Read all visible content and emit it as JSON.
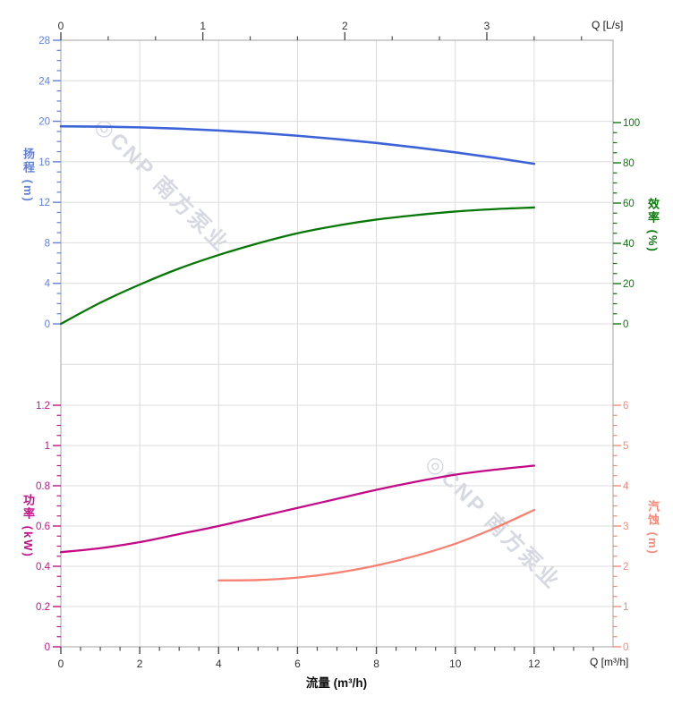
{
  "colors": {
    "head": "#3c63d8",
    "head_label": "#627fdd",
    "efficiency": "#077807",
    "efficiency_label": "#0a7a0a",
    "power": "#c40a86",
    "power_label": "#c3118c",
    "npsh": "#f98070",
    "npsh_label": "#f98878",
    "grid": "#dcdcdc",
    "frame": "#b0b0b0",
    "x_tick": "#4d4d4d",
    "x_tick_label": "#333333",
    "watermark": "#c9cdd8"
  },
  "watermarks": [
    {
      "text": "◎CNP 南方泵业"
    },
    {
      "text": "◎CNP 南方泵业"
    }
  ],
  "labels": {
    "q_top_unit": "Q [L/s]",
    "q_bottom_unit": "Q [m³/h]",
    "xlabel": "流量 (m³/h)",
    "head_title": "扬程 (m)",
    "efficiency_title": "效率 (%)",
    "power_title": "功率 (kW)",
    "npsh_title": "汽蚀 (m)"
  },
  "chart_data": [
    {
      "type": "line",
      "title": "",
      "xlabel": "流量 (m³/h)",
      "x_axis_bottom": {
        "unit": "Q [m³/h]",
        "range": [
          0,
          14
        ],
        "major_tick_labels": [
          "0",
          "2",
          "4",
          "6",
          "8",
          "10",
          "12"
        ],
        "major_tick_values": [
          0,
          2,
          4,
          6,
          8,
          10,
          12
        ],
        "minor_step": 0.5,
        "grid": true
      },
      "x_axis_top": {
        "unit": "Q [L/s]",
        "range": [
          0,
          3.8889
        ],
        "major_tick_labels": [
          "0",
          "1",
          "2",
          "3"
        ],
        "major_tick_values": [
          0,
          1,
          2,
          3
        ],
        "minor_step": 0.33333
      },
      "y_axis_left": {
        "label": "扬程 (m)",
        "range": [
          0,
          28
        ],
        "major_tick_labels": [
          "28",
          "24",
          "20",
          "16",
          "12",
          "8",
          "4",
          "0"
        ],
        "major_tick_values": [
          28,
          24,
          20,
          16,
          12,
          8,
          4,
          0
        ],
        "minor_step": 1,
        "grid": true,
        "extra_grid_values": [
          -4
        ]
      },
      "y_axis_right": {
        "label": "效率 (%)",
        "range": [
          0,
          100
        ],
        "major_tick_labels": [
          "100",
          "80",
          "60",
          "40",
          "20",
          "0"
        ],
        "major_tick_values": [
          100,
          80,
          60,
          40,
          20,
          0
        ],
        "minor_step": 5
      },
      "series": [
        {
          "name": "扬程",
          "axis": "left",
          "color_key": "head",
          "points": [
            [
              0,
              19.5
            ],
            [
              1,
              19.47
            ],
            [
              2,
              19.4
            ],
            [
              3,
              19.27
            ],
            [
              4,
              19.09
            ],
            [
              5,
              18.86
            ],
            [
              6,
              18.57
            ],
            [
              7,
              18.24
            ],
            [
              8,
              17.86
            ],
            [
              9,
              17.42
            ],
            [
              10,
              16.93
            ],
            [
              11,
              16.39
            ],
            [
              12,
              15.8
            ]
          ]
        },
        {
          "name": "效率",
          "axis": "right",
          "color_key": "efficiency",
          "points": [
            [
              0,
              0
            ],
            [
              1,
              10.5
            ],
            [
              2,
              19.5
            ],
            [
              3,
              27.5
            ],
            [
              4,
              34.2
            ],
            [
              5,
              40
            ],
            [
              6,
              45
            ],
            [
              7,
              48.8
            ],
            [
              8,
              51.8
            ],
            [
              9,
              54
            ],
            [
              10,
              55.8
            ],
            [
              11,
              57
            ],
            [
              12,
              57.8
            ]
          ]
        }
      ]
    },
    {
      "type": "line",
      "title": "",
      "xlabel": "流量 (m³/h)",
      "y_axis_left": {
        "label": "功率 (kW)",
        "range": [
          0,
          1.2
        ],
        "major_tick_labels": [
          "1.2",
          "1",
          "0.8",
          "0.6",
          "0.4",
          "0.2",
          "0"
        ],
        "major_tick_values": [
          1.2,
          1,
          0.8,
          0.6,
          0.4,
          0.2,
          0
        ],
        "minor_step": 0.05,
        "grid": true
      },
      "y_axis_right": {
        "label": "汽蚀 (m)",
        "range": [
          0,
          6
        ],
        "major_tick_labels": [
          "6",
          "5",
          "4",
          "3",
          "2",
          "1",
          "0"
        ],
        "major_tick_values": [
          6,
          5,
          4,
          3,
          2,
          1,
          0
        ],
        "minor_step": 0.25
      },
      "series": [
        {
          "name": "功率",
          "axis": "left",
          "color_key": "power",
          "points": [
            [
              0,
              0.47
            ],
            [
              1,
              0.49
            ],
            [
              2,
              0.52
            ],
            [
              3,
              0.56
            ],
            [
              4,
              0.6
            ],
            [
              5,
              0.645
            ],
            [
              6,
              0.69
            ],
            [
              7,
              0.735
            ],
            [
              8,
              0.78
            ],
            [
              9,
              0.82
            ],
            [
              10,
              0.855
            ],
            [
              11,
              0.88
            ],
            [
              12,
              0.9
            ]
          ]
        },
        {
          "name": "汽蚀",
          "axis": "right",
          "color_key": "npsh",
          "points": [
            [
              4,
              1.65
            ],
            [
              5,
              1.66
            ],
            [
              6,
              1.72
            ],
            [
              7,
              1.84
            ],
            [
              8,
              2.02
            ],
            [
              9,
              2.26
            ],
            [
              10,
              2.56
            ],
            [
              11,
              2.95
            ],
            [
              12,
              3.4
            ]
          ]
        }
      ]
    }
  ]
}
